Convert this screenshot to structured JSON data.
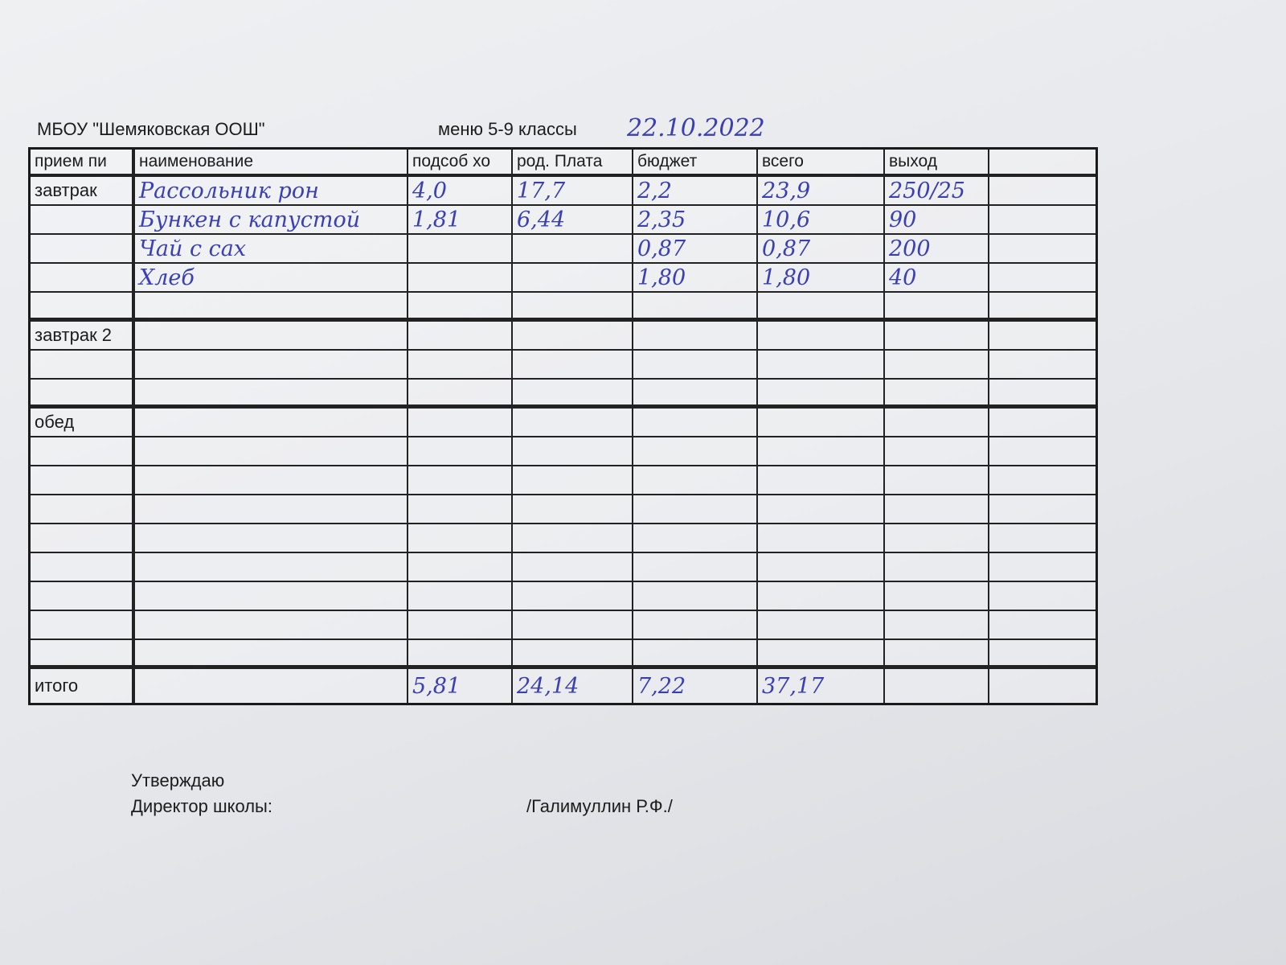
{
  "header": {
    "school": "МБОУ \"Шемяковская ООШ\"",
    "menu": "меню 5-9 классы",
    "date": "22.10.2022"
  },
  "table": {
    "columns": [
      "прием пи",
      "наименование",
      "подсоб хо",
      "род. Плата",
      "бюджет",
      "всего",
      "выход"
    ],
    "groups": [
      {
        "meal": "завтрак",
        "rows": [
          {
            "name": "Рассольник рон",
            "subsidiary": "4,0",
            "parent_fee": "17,7",
            "budget": "2,2",
            "total": "23,9",
            "yield": "250/25"
          },
          {
            "name": "Бункен с капустой",
            "subsidiary": "1,81",
            "parent_fee": "6,44",
            "budget": "2,35",
            "total": "10,6",
            "yield": "90"
          },
          {
            "name": "Чай с сах",
            "budget": "0,87",
            "total": "0,87",
            "yield": "200"
          },
          {
            "name": "Хлеб",
            "budget": "1,80",
            "total": "1,80",
            "yield": "40"
          }
        ]
      },
      {
        "meal": "завтрак 2"
      },
      {
        "meal": "обед"
      }
    ],
    "totals": {
      "label": "итого",
      "subsidiary": "5,81",
      "parent_fee": "24,14",
      "budget": "7,22",
      "total": "37,17"
    }
  },
  "footer": {
    "approve": "Утверждаю",
    "position": "Директор школы:",
    "signature": "/Галимуллин Р.Ф./"
  }
}
